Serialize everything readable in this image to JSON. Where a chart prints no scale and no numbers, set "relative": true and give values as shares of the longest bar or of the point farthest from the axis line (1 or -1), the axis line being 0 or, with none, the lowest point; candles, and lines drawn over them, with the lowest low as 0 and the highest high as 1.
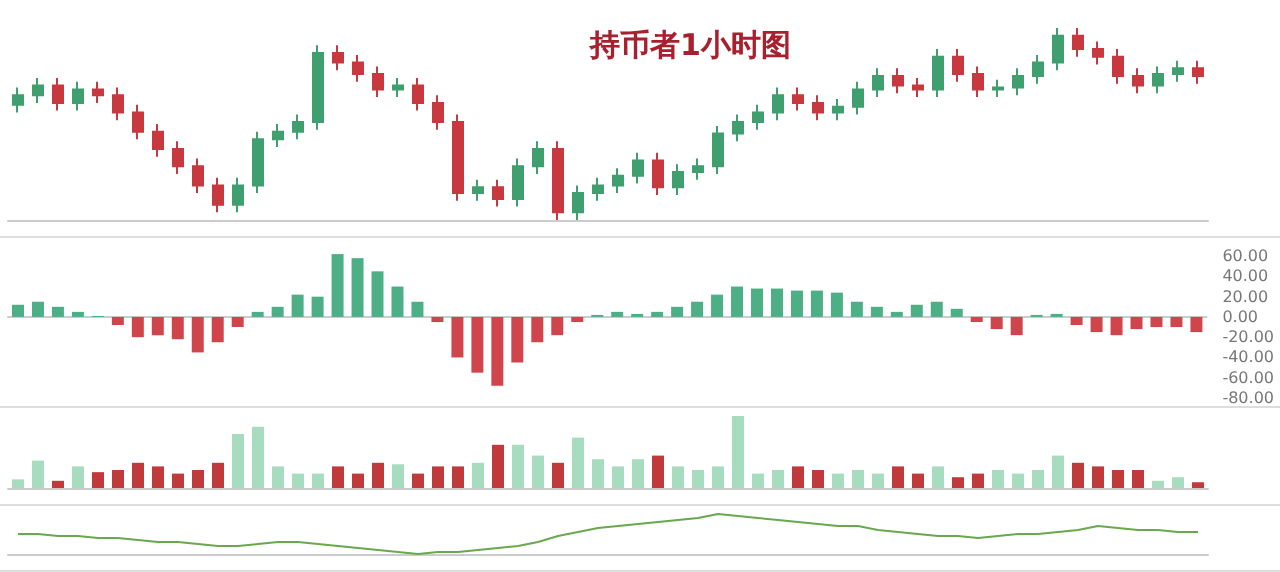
{
  "chart_data": [
    {
      "type": "candlestick",
      "title": "持币者1小时图",
      "relative": true,
      "categories": [
        null,
        null,
        null,
        null,
        null,
        null,
        null,
        null,
        null,
        null,
        null,
        null,
        null,
        null,
        null,
        null,
        null,
        null,
        null,
        null,
        null,
        null,
        null,
        null,
        null,
        null,
        null,
        null,
        null,
        null,
        null,
        null,
        null,
        null,
        null,
        null,
        null,
        null,
        null,
        null,
        null,
        null,
        null,
        null,
        null,
        null,
        null,
        null,
        null,
        null,
        null,
        null,
        null,
        null,
        null,
        null,
        null,
        null,
        null,
        null
      ],
      "ohlc": [
        [
          0.6,
          0.69,
          0.56,
          0.65
        ],
        [
          0.65,
          0.74,
          0.61,
          0.7
        ],
        [
          0.7,
          0.74,
          0.57,
          0.61
        ],
        [
          0.61,
          0.72,
          0.57,
          0.68
        ],
        [
          0.68,
          0.72,
          0.61,
          0.65
        ],
        [
          0.65,
          0.69,
          0.52,
          0.56
        ],
        [
          0.56,
          0.6,
          0.42,
          0.46
        ],
        [
          0.46,
          0.5,
          0.33,
          0.37
        ],
        [
          0.37,
          0.41,
          0.24,
          0.28
        ],
        [
          0.28,
          0.32,
          0.14,
          0.18
        ],
        [
          0.18,
          0.22,
          0.04,
          0.08
        ],
        [
          0.08,
          0.22,
          0.04,
          0.18
        ],
        [
          0.18,
          0.46,
          0.14,
          0.42
        ],
        [
          0.42,
          0.5,
          0.38,
          0.46
        ],
        [
          0.46,
          0.55,
          0.42,
          0.51
        ],
        [
          0.51,
          0.91,
          0.47,
          0.87
        ],
        [
          0.87,
          0.91,
          0.78,
          0.82
        ],
        [
          0.82,
          0.86,
          0.72,
          0.76
        ],
        [
          0.76,
          0.8,
          0.64,
          0.68
        ],
        [
          0.68,
          0.74,
          0.64,
          0.7
        ],
        [
          0.7,
          0.74,
          0.57,
          0.61
        ],
        [
          0.61,
          0.65,
          0.47,
          0.51
        ],
        [
          0.51,
          0.55,
          0.1,
          0.14
        ],
        [
          0.14,
          0.21,
          0.1,
          0.17
        ],
        [
          0.17,
          0.21,
          0.07,
          0.11
        ],
        [
          0.11,
          0.32,
          0.07,
          0.28
        ],
        [
          0.28,
          0.41,
          0.24,
          0.37
        ],
        [
          0.37,
          0.41,
          0,
          0.04
        ],
        [
          0.04,
          0.18,
          0,
          0.14
        ],
        [
          0.14,
          0.22,
          0.1,
          0.18
        ],
        [
          0.18,
          0.27,
          0.14,
          0.23
        ],
        [
          0.23,
          0.35,
          0.19,
          0.31
        ],
        [
          0.31,
          0.35,
          0.13,
          0.17
        ],
        [
          0.17,
          0.29,
          0.13,
          0.25
        ],
        [
          0.25,
          0.32,
          0.21,
          0.28
        ],
        [
          0.28,
          0.49,
          0.24,
          0.45
        ],
        [
          0.45,
          0.55,
          0.41,
          0.51
        ],
        [
          0.51,
          0.6,
          0.47,
          0.56
        ],
        [
          0.56,
          0.69,
          0.52,
          0.65
        ],
        [
          0.65,
          0.69,
          0.57,
          0.61
        ],
        [
          0.61,
          0.65,
          0.52,
          0.56
        ],
        [
          0.56,
          0.63,
          0.52,
          0.59
        ],
        [
          0.59,
          0.72,
          0.55,
          0.68
        ],
        [
          0.68,
          0.79,
          0.64,
          0.75
        ],
        [
          0.75,
          0.79,
          0.66,
          0.7
        ],
        [
          0.7,
          0.74,
          0.64,
          0.68
        ],
        [
          0.68,
          0.89,
          0.64,
          0.85
        ],
        [
          0.85,
          0.89,
          0.72,
          0.76
        ],
        [
          0.76,
          0.8,
          0.64,
          0.68
        ],
        [
          0.68,
          0.73,
          0.64,
          0.69
        ],
        [
          0.69,
          0.79,
          0.65,
          0.75
        ],
        [
          0.75,
          0.86,
          0.71,
          0.82
        ],
        [
          0.82,
          1,
          0.78,
          0.96
        ],
        [
          0.96,
          1,
          0.85,
          0.89
        ],
        [
          0.89,
          0.93,
          0.81,
          0.85
        ],
        [
          0.85,
          0.89,
          0.71,
          0.75
        ],
        [
          0.75,
          0.79,
          0.66,
          0.7
        ],
        [
          0.7,
          0.8,
          0.66,
          0.76
        ],
        [
          0.76,
          0.83,
          0.72,
          0.79
        ],
        [
          0.79,
          0.83,
          0.71,
          0.75
        ]
      ],
      "colors": [
        "#3f9f6f",
        "#3f9f6f",
        "#c8393f",
        "#3f9f6f",
        "#c8393f",
        "#c8393f",
        "#c8393f",
        "#c8393f",
        "#c8393f",
        "#c8393f",
        "#c8393f",
        "#3f9f6f",
        "#3f9f6f",
        "#3f9f6f",
        "#3f9f6f",
        "#3f9f6f",
        "#c8393f",
        "#c8393f",
        "#c8393f",
        "#3f9f6f",
        "#c8393f",
        "#c8393f",
        "#c8393f",
        "#3f9f6f",
        "#c8393f",
        "#3f9f6f",
        "#3f9f6f",
        "#c8393f",
        "#3f9f6f",
        "#3f9f6f",
        "#3f9f6f",
        "#3f9f6f",
        "#c8393f",
        "#3f9f6f",
        "#3f9f6f",
        "#3f9f6f",
        "#3f9f6f",
        "#3f9f6f",
        "#3f9f6f",
        "#c8393f",
        "#c8393f",
        "#3f9f6f",
        "#3f9f6f",
        "#3f9f6f",
        "#c8393f",
        "#c8393f",
        "#3f9f6f",
        "#c8393f",
        "#c8393f",
        "#3f9f6f",
        "#3f9f6f",
        "#3f9f6f",
        "#3f9f6f",
        "#c8393f",
        "#c8393f",
        "#c8393f",
        "#c8393f",
        "#3f9f6f",
        "#3f9f6f",
        "#c8393f"
      ]
    },
    {
      "type": "bar",
      "categories": [
        null,
        null,
        null,
        null,
        null,
        null,
        null,
        null,
        null,
        null,
        null,
        null,
        null,
        null,
        null,
        null,
        null,
        null,
        null,
        null,
        null,
        null,
        null,
        null,
        null,
        null,
        null,
        null,
        null,
        null,
        null,
        null,
        null,
        null,
        null,
        null,
        null,
        null,
        null,
        null,
        null,
        null,
        null,
        null,
        null,
        null,
        null,
        null,
        null,
        null,
        null,
        null,
        null,
        null,
        null,
        null,
        null,
        null,
        null,
        null
      ],
      "values": [
        12,
        15,
        10,
        5,
        1,
        -8,
        -20,
        -18,
        -22,
        -35,
        -25,
        -10,
        5,
        10,
        22,
        20,
        62,
        58,
        45,
        30,
        15,
        -5,
        -40,
        -55,
        -68,
        -45,
        -25,
        -18,
        -5,
        2,
        5,
        3,
        5,
        10,
        15,
        22,
        30,
        28,
        28,
        26,
        26,
        24,
        15,
        10,
        5,
        12,
        15,
        8,
        -5,
        -12,
        -18,
        2,
        3,
        -8,
        -15,
        -18,
        -12,
        -10,
        -10,
        -15
      ],
      "colors": [
        "#4caf85",
        "#4caf85",
        "#4caf85",
        "#4caf85",
        "#4caf85",
        "#d0454c",
        "#d0454c",
        "#d0454c",
        "#d0454c",
        "#d0454c",
        "#d0454c",
        "#d0454c",
        "#4caf85",
        "#4caf85",
        "#4caf85",
        "#4caf85",
        "#4caf85",
        "#4caf85",
        "#4caf85",
        "#4caf85",
        "#4caf85",
        "#d0454c",
        "#d0454c",
        "#d0454c",
        "#d0454c",
        "#d0454c",
        "#d0454c",
        "#d0454c",
        "#d0454c",
        "#4caf85",
        "#4caf85",
        "#4caf85",
        "#4caf85",
        "#4caf85",
        "#4caf85",
        "#4caf85",
        "#4caf85",
        "#4caf85",
        "#4caf85",
        "#4caf85",
        "#4caf85",
        "#4caf85",
        "#4caf85",
        "#4caf85",
        "#4caf85",
        "#4caf85",
        "#4caf85",
        "#4caf85",
        "#d0454c",
        "#d0454c",
        "#d0454c",
        "#4caf85",
        "#4caf85",
        "#d0454c",
        "#d0454c",
        "#d0454c",
        "#d0454c",
        "#d0454c",
        "#d0454c",
        "#d0454c"
      ],
      "ylim": [
        -80,
        70
      ],
      "yticks": [
        {
          "value": 60,
          "label": "60.00"
        },
        {
          "value": 40,
          "label": "40.00"
        },
        {
          "value": 20,
          "label": "20.00"
        },
        {
          "value": 0,
          "label": "0.00"
        },
        {
          "value": -20,
          "label": "-20.00"
        },
        {
          "value": -40,
          "label": "-40.00"
        },
        {
          "value": -60,
          "label": "-60.00"
        },
        {
          "value": -80,
          "label": "-80.00"
        }
      ],
      "tick_labels": "y"
    },
    {
      "type": "bar",
      "relative": true,
      "categories": [
        null,
        null,
        null,
        null,
        null,
        null,
        null,
        null,
        null,
        null,
        null,
        null,
        null,
        null,
        null,
        null,
        null,
        null,
        null,
        null,
        null,
        null,
        null,
        null,
        null,
        null,
        null,
        null,
        null,
        null,
        null,
        null,
        null,
        null,
        null,
        null,
        null,
        null,
        null,
        null,
        null,
        null,
        null,
        null,
        null,
        null,
        null,
        null,
        null,
        null,
        null,
        null,
        null,
        null,
        null,
        null,
        null,
        null,
        null,
        null
      ],
      "values": [
        0.12,
        0.38,
        0.1,
        0.3,
        0.22,
        0.25,
        0.35,
        0.3,
        0.2,
        0.25,
        0.35,
        0.75,
        0.85,
        0.3,
        0.2,
        0.2,
        0.3,
        0.2,
        0.35,
        0.33,
        0.2,
        0.3,
        0.3,
        0.35,
        0.6,
        0.6,
        0.45,
        0.35,
        0.7,
        0.4,
        0.3,
        0.4,
        0.45,
        0.3,
        0.25,
        0.3,
        1,
        0.2,
        0.25,
        0.3,
        0.25,
        0.2,
        0.25,
        0.2,
        0.3,
        0.2,
        0.3,
        0.15,
        0.2,
        0.25,
        0.2,
        0.25,
        0.45,
        0.35,
        0.3,
        0.25,
        0.25,
        0.1,
        0.15,
        0.08
      ],
      "colors": [
        "#a8dcc0",
        "#a8dcc0",
        "#c0393b",
        "#a8dcc0",
        "#c0393b",
        "#c0393b",
        "#c0393b",
        "#c0393b",
        "#c0393b",
        "#c0393b",
        "#c0393b",
        "#a8dcc0",
        "#a8dcc0",
        "#a8dcc0",
        "#a8dcc0",
        "#a8dcc0",
        "#c0393b",
        "#c0393b",
        "#c0393b",
        "#a8dcc0",
        "#c0393b",
        "#c0393b",
        "#c0393b",
        "#a8dcc0",
        "#c0393b",
        "#a8dcc0",
        "#a8dcc0",
        "#c0393b",
        "#a8dcc0",
        "#a8dcc0",
        "#a8dcc0",
        "#a8dcc0",
        "#c0393b",
        "#a8dcc0",
        "#a8dcc0",
        "#a8dcc0",
        "#a8dcc0",
        "#a8dcc0",
        "#a8dcc0",
        "#c0393b",
        "#c0393b",
        "#a8dcc0",
        "#a8dcc0",
        "#a8dcc0",
        "#c0393b",
        "#c0393b",
        "#a8dcc0",
        "#c0393b",
        "#c0393b",
        "#a8dcc0",
        "#a8dcc0",
        "#a8dcc0",
        "#a8dcc0",
        "#c0393b",
        "#c0393b",
        "#c0393b",
        "#c0393b",
        "#a8dcc0",
        "#a8dcc0",
        "#c0393b"
      ]
    },
    {
      "type": "line",
      "relative": true,
      "marker": "none",
      "categories": [
        null,
        null,
        null,
        null,
        null,
        null,
        null,
        null,
        null,
        null,
        null,
        null,
        null,
        null,
        null,
        null,
        null,
        null,
        null,
        null,
        null,
        null,
        null,
        null,
        null,
        null,
        null,
        null,
        null,
        null,
        null,
        null,
        null,
        null,
        null,
        null,
        null,
        null,
        null,
        null,
        null,
        null,
        null,
        null,
        null,
        null,
        null,
        null,
        null,
        null,
        null,
        null,
        null,
        null,
        null,
        null,
        null,
        null,
        null,
        null
      ],
      "series": [
        {
          "color": "#6aa84f",
          "values": [
            0.5,
            0.5,
            0.45,
            0.45,
            0.4,
            0.4,
            0.35,
            0.3,
            0.3,
            0.25,
            0.2,
            0.2,
            0.25,
            0.3,
            0.3,
            0.25,
            0.2,
            0.15,
            0.1,
            0.05,
            0,
            0.05,
            0.05,
            0.1,
            0.15,
            0.2,
            0.3,
            0.45,
            0.55,
            0.65,
            0.7,
            0.75,
            0.8,
            0.85,
            0.9,
            1,
            0.95,
            0.9,
            0.85,
            0.8,
            0.75,
            0.7,
            0.7,
            0.6,
            0.55,
            0.5,
            0.45,
            0.45,
            0.4,
            0.45,
            0.5,
            0.5,
            0.55,
            0.6,
            0.7,
            0.65,
            0.6,
            0.6,
            0.55,
            0.55
          ]
        }
      ]
    }
  ]
}
